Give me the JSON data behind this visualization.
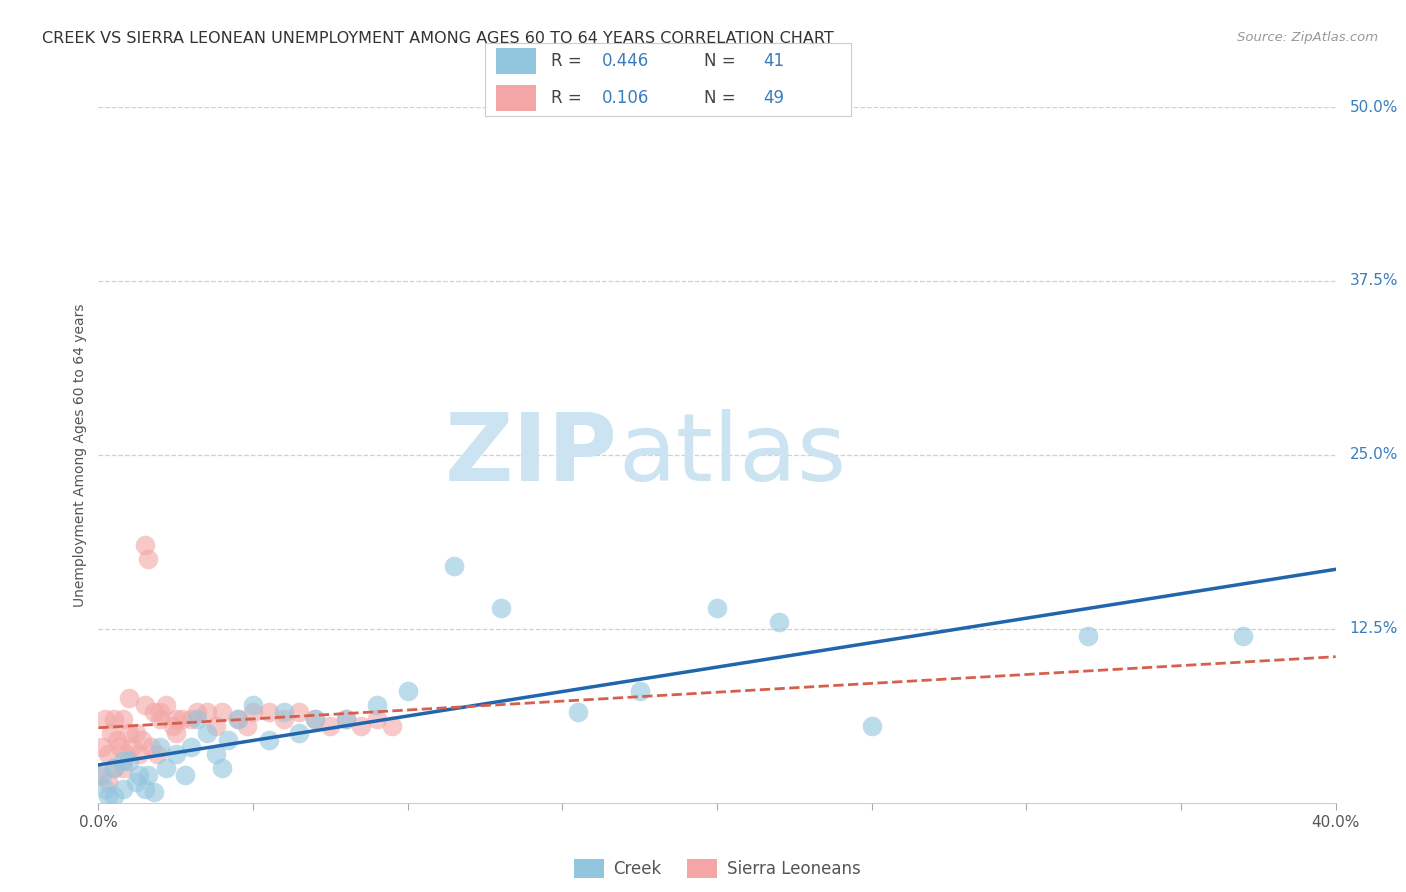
{
  "title": "CREEK VS SIERRA LEONEAN UNEMPLOYMENT AMONG AGES 60 TO 64 YEARS CORRELATION CHART",
  "source": "Source: ZipAtlas.com",
  "ylabel": "Unemployment Among Ages 60 to 64 years",
  "xlim": [
    0.0,
    0.4
  ],
  "ylim": [
    0.0,
    0.5
  ],
  "xticks": [
    0.0,
    0.05,
    0.1,
    0.15,
    0.2,
    0.25,
    0.3,
    0.35,
    0.4
  ],
  "xticklabels": [
    "0.0%",
    "",
    "",
    "",
    "",
    "",
    "",
    "",
    "40.0%"
  ],
  "yticks": [
    0.0,
    0.125,
    0.25,
    0.375,
    0.5
  ],
  "yticklabels": [
    "",
    "12.5%",
    "25.0%",
    "37.5%",
    "50.0%"
  ],
  "creek_color": "#92c5de",
  "sierra_color": "#f4a6a6",
  "creek_line_color": "#2166ac",
  "sierra_line_color": "#d6604d",
  "creek_R": 0.446,
  "creek_N": 41,
  "sierra_R": 0.106,
  "sierra_N": 49,
  "creek_x": [
    0.001,
    0.002,
    0.003,
    0.005,
    0.005,
    0.008,
    0.008,
    0.01,
    0.012,
    0.013,
    0.015,
    0.016,
    0.018,
    0.02,
    0.022,
    0.025,
    0.028,
    0.03,
    0.032,
    0.035,
    0.038,
    0.04,
    0.042,
    0.045,
    0.05,
    0.055,
    0.06,
    0.065,
    0.07,
    0.08,
    0.09,
    0.1,
    0.115,
    0.13,
    0.155,
    0.175,
    0.2,
    0.22,
    0.25,
    0.32,
    0.37
  ],
  "creek_y": [
    0.02,
    0.01,
    0.005,
    0.005,
    0.025,
    0.01,
    0.03,
    0.03,
    0.015,
    0.02,
    0.01,
    0.02,
    0.008,
    0.04,
    0.025,
    0.035,
    0.02,
    0.04,
    0.06,
    0.05,
    0.035,
    0.025,
    0.045,
    0.06,
    0.07,
    0.045,
    0.065,
    0.05,
    0.06,
    0.06,
    0.07,
    0.08,
    0.17,
    0.14,
    0.065,
    0.08,
    0.14,
    0.13,
    0.055,
    0.12,
    0.12
  ],
  "sierra_x": [
    0.0,
    0.001,
    0.002,
    0.003,
    0.003,
    0.004,
    0.005,
    0.005,
    0.006,
    0.007,
    0.008,
    0.008,
    0.009,
    0.01,
    0.011,
    0.012,
    0.013,
    0.014,
    0.015,
    0.016,
    0.017,
    0.018,
    0.019,
    0.02,
    0.022,
    0.024,
    0.025,
    0.027,
    0.03,
    0.032,
    0.035,
    0.038,
    0.04,
    0.045,
    0.048,
    0.05,
    0.055,
    0.06,
    0.065,
    0.07,
    0.075,
    0.08,
    0.085,
    0.09,
    0.095,
    0.01,
    0.015,
    0.02,
    0.025
  ],
  "sierra_y": [
    0.02,
    0.04,
    0.06,
    0.035,
    0.015,
    0.05,
    0.025,
    0.06,
    0.045,
    0.04,
    0.025,
    0.06,
    0.035,
    0.05,
    0.04,
    0.05,
    0.035,
    0.045,
    0.185,
    0.175,
    0.04,
    0.065,
    0.035,
    0.06,
    0.07,
    0.055,
    0.05,
    0.06,
    0.06,
    0.065,
    0.065,
    0.055,
    0.065,
    0.06,
    0.055,
    0.065,
    0.065,
    0.06,
    0.065,
    0.06,
    0.055,
    0.06,
    0.055,
    0.06,
    0.055,
    0.075,
    0.07,
    0.065,
    0.06
  ],
  "background_color": "#ffffff",
  "grid_color": "#d0d0d0",
  "watermark_color": "#cce4f2",
  "title_fontsize": 11.5,
  "label_fontsize": 10,
  "tick_fontsize": 11,
  "right_tick_color": "#3a7dbf"
}
